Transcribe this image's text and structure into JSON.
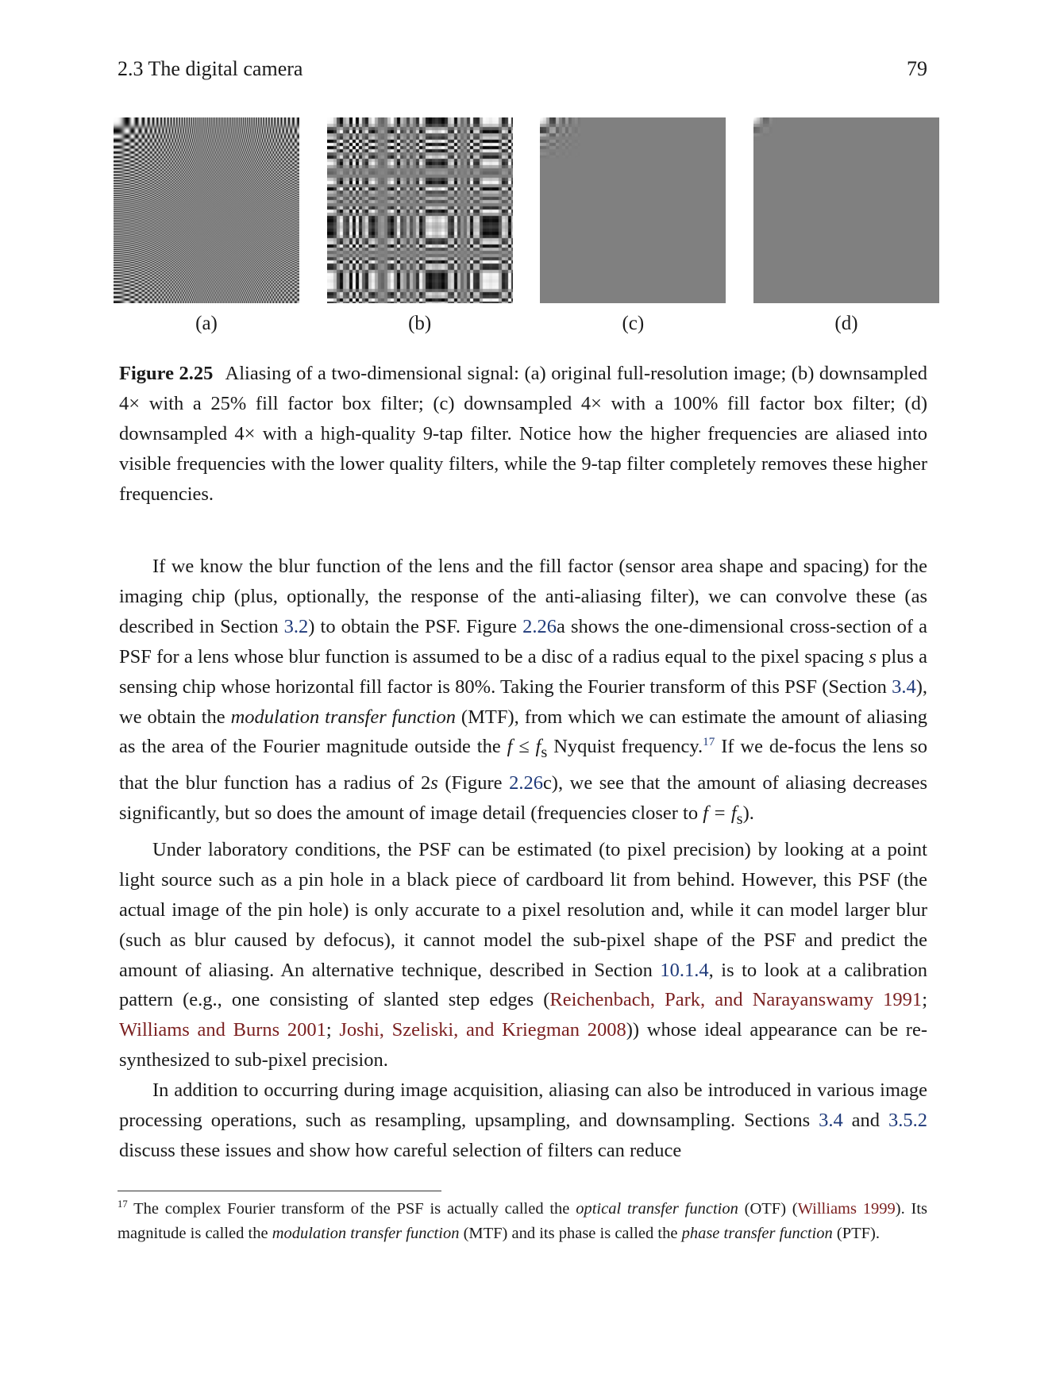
{
  "header": {
    "section": "2.3 The digital camera",
    "page_number": "79"
  },
  "figure": {
    "panels": [
      {
        "label": "(a)",
        "quality": 0
      },
      {
        "label": "(b)",
        "quality": 1
      },
      {
        "label": "(c)",
        "quality": 2
      },
      {
        "label": "(d)",
        "quality": 3
      }
    ],
    "caption_label": "Figure 2.25",
    "caption_text": "Aliasing of a two-dimensional signal: (a) original full-resolution image; (b) downsampled 4× with a 25% fill factor box filter; (c) downsampled 4× with a 100% fill factor box filter; (d) downsampled 4× with a high-quality 9-tap filter. Notice how the higher frequencies are aliased into visible frequencies with the lower quality filters, while the 9-tap filter completely removes these higher frequencies."
  },
  "body": {
    "p1": {
      "t1": "If we know the blur function of the lens and the fill factor (sensor area shape and spacing) for the imaging chip (plus, optionally, the response of the anti-aliasing filter), we can convolve these (as described in Section ",
      "ref1": "3.2",
      "t2": ") to obtain the PSF. Figure ",
      "ref2": "2.26",
      "t3": "a shows the one-dimensional cross-section of a PSF for a lens whose blur function is assumed to be a disc of a radius equal to the pixel spacing ",
      "m1": "s",
      "t4": " plus a sensing chip whose horizontal fill factor is 80%. Taking the Fourier transform of this PSF (Section ",
      "ref3": "3.4",
      "t5": "), we obtain the ",
      "em1": "modulation transfer function",
      "t6": " (MTF), from which we can estimate the amount of aliasing as the area of the Fourier magnitude outside the ",
      "m2": "f ≤ f",
      "m2sub": "s",
      "t7": " Nyquist frequency.",
      "fn": "17",
      "t8": " If we de-focus the lens so that the blur function has a radius of 2",
      "m3": "s",
      "t9": " (Figure ",
      "ref4": "2.26",
      "t10": "c), we see that the amount of aliasing decreases significantly, but so does the amount of image detail (frequencies closer to ",
      "m4": "f = f",
      "m4sub": "s",
      "t11": ")."
    },
    "p2": {
      "t1": "Under laboratory conditions, the PSF can be estimated (to pixel precision) by looking at a point light source such as a pin hole in a black piece of cardboard lit from behind. However, this PSF (the actual image of the pin hole) is only accurate to a pixel resolution and, while it can model larger blur (such as blur caused by defocus), it cannot model the sub-pixel shape of the PSF and predict the amount of aliasing. An alternative technique, described in Section ",
      "ref1": "10.1.4",
      "t2": ", is to look at a calibration pattern (e.g., one consisting of slanted step edges (",
      "cite1": "Reichenbach, Park, and Narayanswamy 1991",
      "sep1": "; ",
      "cite2": "Williams and Burns 2001",
      "sep2": "; ",
      "cite3": "Joshi, Szeliski, and Kriegman 2008",
      "t3": ")) whose ideal appearance can be re-synthesized to sub-pixel precision."
    },
    "p3": {
      "t1": "In addition to occurring during image acquisition, aliasing can also be introduced in various image processing operations, such as resampling, upsampling, and downsampling. Sections ",
      "ref1": "3.4",
      "t2": " and ",
      "ref2": "3.5.2",
      "t3": " discuss these issues and show how careful selection of filters can reduce"
    }
  },
  "footnote": {
    "num": "17",
    "t1": " The complex Fourier transform of the PSF is actually called the ",
    "em1": "optical transfer function",
    "t2": " (OTF) (",
    "cite1": "Williams 1999",
    "t3": "). Its magnitude is called the ",
    "em2": "modulation transfer function",
    "t4": " (MTF) and its phase is called the ",
    "em3": "phase transfer function",
    "t5": " (PTF)."
  }
}
